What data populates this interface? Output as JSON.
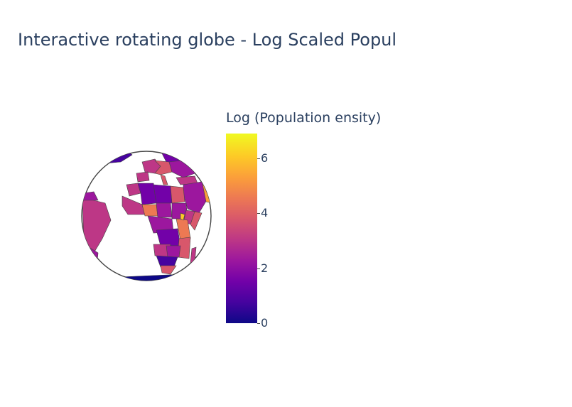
{
  "title": "Interactive rotating globe - Log Scaled Popul",
  "colorbar": {
    "title": "Log (Population ensity)",
    "ticks": [
      "0",
      "2",
      "4",
      "6"
    ],
    "range": [
      0,
      6.9
    ],
    "colorscale": [
      "#0d0887",
      "#46039f",
      "#7201a8",
      "#9c179e",
      "#bd3786",
      "#d8576b",
      "#ed7953",
      "#fb9f3a",
      "#fdca26",
      "#f0f921"
    ]
  },
  "map": {
    "projection": "orthographic",
    "background": "#ffffff",
    "border_color": "#444444",
    "regions_visible": [
      "Africa",
      "Europe",
      "South America",
      "Middle East",
      "Antarctica"
    ]
  }
}
